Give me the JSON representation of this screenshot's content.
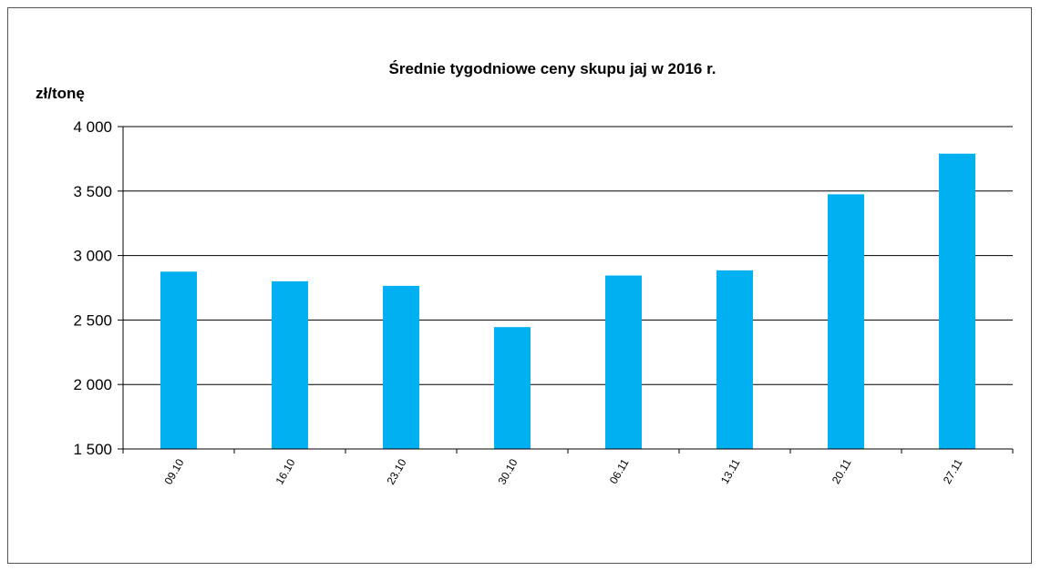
{
  "chart_data": {
    "type": "bar",
    "title": "Średnie  tygodniowe  ceny skupu jaj w 2016 r.",
    "ylabel": "zł/tonę",
    "xlabel": "",
    "categories": [
      "09.10",
      "16.10",
      "23.10",
      "30.10",
      "06.11",
      "13.11",
      "20.11",
      "27.11"
    ],
    "values": [
      2875,
      2800,
      2765,
      2445,
      2845,
      2885,
      3475,
      3790
    ],
    "ylim": [
      1500,
      4000
    ],
    "yticks": [
      1500,
      2000,
      2500,
      3000,
      3500,
      4000
    ],
    "ytick_labels": [
      "1 500",
      "2 000",
      "2 500",
      "3 000",
      "3 500",
      "4 000"
    ],
    "grid": true,
    "legend": "none",
    "bar_color": "#00b0f0"
  }
}
